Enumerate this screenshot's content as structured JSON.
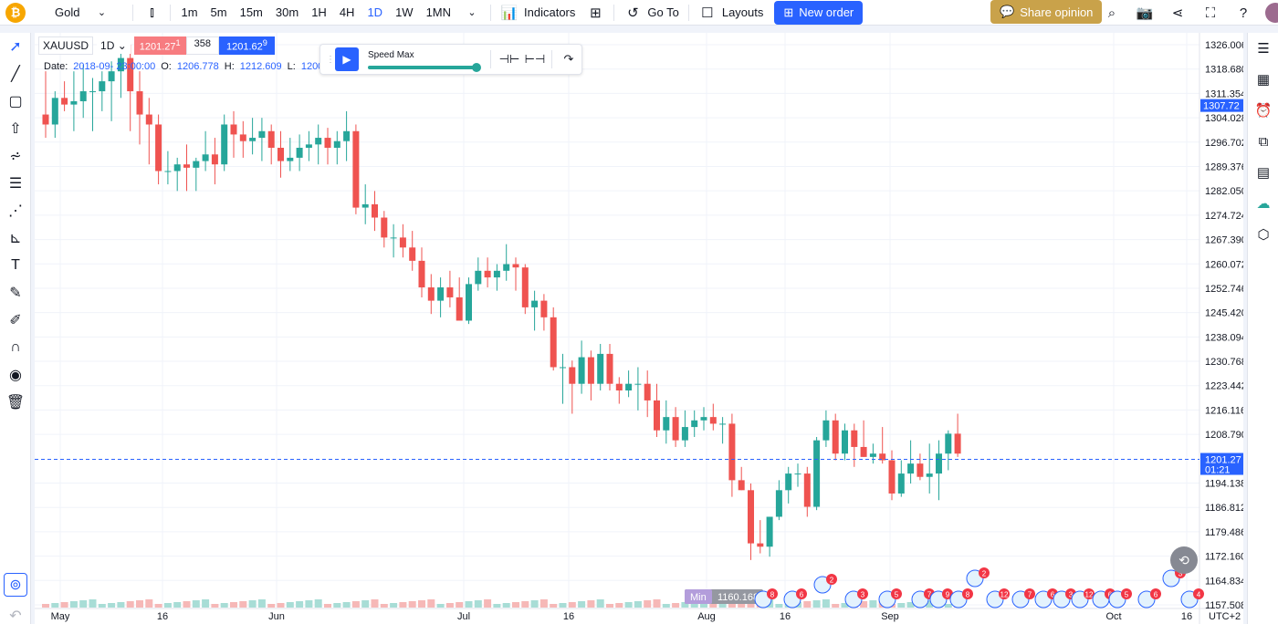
{
  "topbar": {
    "symbol": "Gold",
    "intervals": [
      "1m",
      "5m",
      "15m",
      "30m",
      "1H",
      "4H",
      "1D",
      "1W",
      "1MN"
    ],
    "indicators_label": "Indicators",
    "goto_label": "Go To",
    "layouts_label": "Layouts",
    "new_order_label": "New order",
    "share_label": "Share opinion"
  },
  "legend": {
    "symbol": "XAUUSD",
    "interval": "1D",
    "bid": "1201.27",
    "bid_sup": "1",
    "spread": "358",
    "ask": "1201.62",
    "ask_sup": "9",
    "date_label": "Date:",
    "date_value": "2018-09-",
    "date_time": "23:00:00",
    "o_label": "O:",
    "o_value": "1206.778",
    "h_label": "H:",
    "h_value": "1212.609",
    "l_label": "L:",
    "l_value": "1200."
  },
  "replay": {
    "speed_label": "Speed Max"
  },
  "chart_data": {
    "type": "candlestick",
    "price_labels": [
      "1326.006",
      "1318.680",
      "1311.354",
      "1304.028",
      "1296.702",
      "1289.376",
      "1282.050",
      "1274.724",
      "1267.390",
      "1260.072",
      "1252.746",
      "1245.420",
      "1238.094",
      "1230.768",
      "1223.442",
      "1216.116",
      "1208.790",
      "1201.27",
      "1194.138",
      "1186.812",
      "1179.486",
      "1172.160",
      "1164.834",
      "1157.508"
    ],
    "x_labels": [
      "May",
      "16",
      "Jun",
      "Jul",
      "16",
      "Aug",
      "16",
      "Sep",
      "Oct",
      "16"
    ],
    "current_price": "1201.27",
    "countdown": "01:21",
    "crosshair_price": "1307.72",
    "min_label": "Min",
    "min_value": "1160.168",
    "timezone": "UTC+2",
    "colors": {
      "up": "#26a69a",
      "down": "#ef5350",
      "price_line": "#2962ff"
    },
    "candles": [
      [
        1305,
        1318,
        1298,
        1302
      ],
      [
        1302,
        1312,
        1298,
        1310
      ],
      [
        1310,
        1315,
        1306,
        1308
      ],
      [
        1308,
        1318,
        1300,
        1309
      ],
      [
        1309,
        1320,
        1304,
        1312
      ],
      [
        1312,
        1316,
        1300,
        1312
      ],
      [
        1312,
        1318,
        1306,
        1315
      ],
      [
        1315,
        1321,
        1303,
        1318
      ],
      [
        1318,
        1326,
        1310,
        1322
      ],
      [
        1322,
        1326,
        1300,
        1312
      ],
      [
        1312,
        1318,
        1296,
        1305
      ],
      [
        1305,
        1310,
        1290,
        1302
      ],
      [
        1302,
        1305,
        1284,
        1288
      ],
      [
        1288,
        1294,
        1284,
        1288
      ],
      [
        1288,
        1292,
        1282,
        1290
      ],
      [
        1290,
        1296,
        1282,
        1289
      ],
      [
        1289,
        1292,
        1282,
        1291
      ],
      [
        1291,
        1300,
        1288,
        1293
      ],
      [
        1293,
        1298,
        1284,
        1290
      ],
      [
        1290,
        1305,
        1288,
        1302
      ],
      [
        1302,
        1306,
        1292,
        1299
      ],
      [
        1299,
        1303,
        1292,
        1297
      ],
      [
        1297,
        1304,
        1293,
        1298
      ],
      [
        1298,
        1304,
        1291,
        1300
      ],
      [
        1300,
        1302,
        1290,
        1295
      ],
      [
        1295,
        1300,
        1286,
        1291
      ],
      [
        1291,
        1298,
        1288,
        1292
      ],
      [
        1292,
        1299,
        1288,
        1295
      ],
      [
        1295,
        1300,
        1291,
        1296
      ],
      [
        1296,
        1302,
        1290,
        1298
      ],
      [
        1298,
        1301,
        1290,
        1295
      ],
      [
        1295,
        1300,
        1290,
        1297
      ],
      [
        1297,
        1306,
        1291,
        1300
      ],
      [
        1300,
        1302,
        1275,
        1277
      ],
      [
        1277,
        1284,
        1272,
        1278
      ],
      [
        1278,
        1282,
        1270,
        1274
      ],
      [
        1274,
        1276,
        1265,
        1268
      ],
      [
        1268,
        1272,
        1262,
        1268
      ],
      [
        1268,
        1272,
        1262,
        1265
      ],
      [
        1265,
        1270,
        1258,
        1261
      ],
      [
        1261,
        1265,
        1250,
        1253
      ],
      [
        1253,
        1257,
        1245,
        1249
      ],
      [
        1249,
        1256,
        1244,
        1253
      ],
      [
        1253,
        1258,
        1247,
        1250
      ],
      [
        1250,
        1256,
        1244,
        1243
      ],
      [
        1243,
        1256,
        1242,
        1254
      ],
      [
        1254,
        1262,
        1252,
        1258
      ],
      [
        1258,
        1262,
        1253,
        1256
      ],
      [
        1256,
        1260,
        1252,
        1258
      ],
      [
        1258,
        1266,
        1255,
        1260
      ],
      [
        1260,
        1262,
        1252,
        1259
      ],
      [
        1259,
        1260,
        1245,
        1247
      ],
      [
        1247,
        1252,
        1240,
        1249
      ],
      [
        1249,
        1251,
        1240,
        1244
      ],
      [
        1244,
        1247,
        1228,
        1229
      ],
      [
        1229,
        1233,
        1218,
        1229
      ],
      [
        1229,
        1231,
        1215,
        1224
      ],
      [
        1224,
        1237,
        1221,
        1232
      ],
      [
        1232,
        1234,
        1219,
        1224
      ],
      [
        1224,
        1236,
        1222,
        1233
      ],
      [
        1233,
        1236,
        1222,
        1224
      ],
      [
        1224,
        1226,
        1218,
        1222
      ],
      [
        1222,
        1228,
        1220,
        1224
      ],
      [
        1224,
        1229,
        1216,
        1224
      ],
      [
        1224,
        1228,
        1214,
        1219
      ],
      [
        1219,
        1224,
        1208,
        1210
      ],
      [
        1210,
        1219,
        1206,
        1214
      ],
      [
        1214,
        1217,
        1205,
        1207
      ],
      [
        1207,
        1216,
        1205,
        1211
      ],
      [
        1211,
        1216,
        1208,
        1213
      ],
      [
        1213,
        1217,
        1210,
        1214
      ],
      [
        1214,
        1218,
        1210,
        1212
      ],
      [
        1212,
        1214,
        1206,
        1212
      ],
      [
        1212,
        1215,
        1190,
        1195
      ],
      [
        1195,
        1199,
        1192,
        1192
      ],
      [
        1192,
        1194,
        1171,
        1176
      ],
      [
        1176,
        1183,
        1173,
        1175
      ],
      [
        1175,
        1184,
        1172,
        1184
      ],
      [
        1184,
        1195,
        1183,
        1192
      ],
      [
        1192,
        1199,
        1188,
        1197
      ],
      [
        1197,
        1200,
        1193,
        1197
      ],
      [
        1197,
        1199,
        1184,
        1187
      ],
      [
        1187,
        1208,
        1186,
        1207
      ],
      [
        1207,
        1216,
        1205,
        1213
      ],
      [
        1213,
        1215,
        1201,
        1203
      ],
      [
        1203,
        1212,
        1201,
        1210
      ],
      [
        1210,
        1212,
        1199,
        1205
      ],
      [
        1205,
        1213,
        1202,
        1202
      ],
      [
        1202,
        1206,
        1200,
        1203
      ],
      [
        1203,
        1211,
        1200,
        1201
      ],
      [
        1201,
        1204,
        1189,
        1191
      ],
      [
        1191,
        1201,
        1190,
        1197
      ],
      [
        1197,
        1207,
        1194,
        1200
      ],
      [
        1200,
        1203,
        1195,
        1196
      ],
      [
        1196,
        1206,
        1191,
        1197
      ],
      [
        1197,
        1207,
        1189,
        1203
      ],
      [
        1203,
        1210,
        1198,
        1209
      ],
      [
        1209,
        1215,
        1202,
        1203
      ]
    ]
  },
  "events": {
    "badges": [
      "8",
      "6",
      "2",
      "3",
      "5",
      "7",
      "9",
      "8",
      "2",
      "12",
      "7",
      "6",
      "3",
      "12",
      "6",
      "5",
      "6",
      "3",
      "4"
    ]
  }
}
